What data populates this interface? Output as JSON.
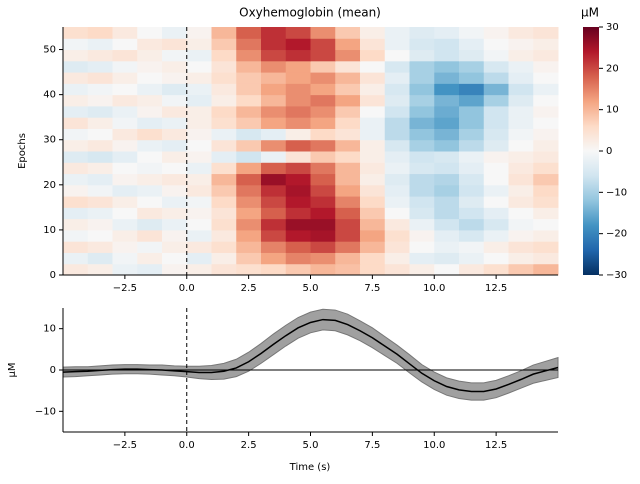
{
  "chart_data": [
    {
      "type": "heatmap",
      "title": "Oxyhemoglobin (mean)",
      "ylabel": "Epochs",
      "x": [
        -5,
        -4,
        -3,
        -2,
        -1,
        0,
        1,
        2,
        3,
        4,
        5,
        6,
        7,
        8,
        9,
        10,
        11,
        12,
        13,
        14,
        15
      ],
      "y": [
        0,
        2.5,
        5,
        7.5,
        10,
        12.5,
        15,
        17.5,
        20,
        22.5,
        25,
        27.5,
        30,
        32.5,
        35,
        37.5,
        40,
        42.5,
        45,
        47.5,
        50,
        52.5,
        55
      ],
      "z": [
        [
          3,
          2,
          -2,
          -3,
          1,
          2,
          4,
          5,
          6,
          8,
          10,
          9,
          6,
          4,
          2,
          0,
          3,
          5,
          8,
          10
        ],
        [
          -2,
          -4,
          -1,
          2,
          0,
          -3,
          2,
          8,
          12,
          15,
          14,
          10,
          6,
          2,
          -3,
          -4,
          -2,
          0,
          2,
          3
        ],
        [
          4,
          3,
          1,
          -1,
          2,
          3,
          5,
          10,
          15,
          18,
          20,
          16,
          10,
          4,
          0,
          -2,
          -1,
          2,
          4,
          5
        ],
        [
          -1,
          0,
          2,
          4,
          1,
          -2,
          3,
          12,
          20,
          24,
          25,
          20,
          12,
          5,
          1,
          -3,
          -5,
          -2,
          1,
          2
        ],
        [
          2,
          1,
          -2,
          -4,
          -2,
          0,
          5,
          14,
          22,
          26,
          26,
          20,
          10,
          3,
          -2,
          -6,
          -8,
          -5,
          -1,
          0
        ],
        [
          -3,
          -2,
          0,
          3,
          2,
          1,
          4,
          12,
          18,
          22,
          24,
          18,
          8,
          0,
          -5,
          -8,
          -6,
          -3,
          0,
          2
        ],
        [
          5,
          4,
          2,
          0,
          -2,
          -1,
          6,
          14,
          20,
          24,
          22,
          15,
          6,
          -2,
          -6,
          -8,
          -4,
          0,
          3,
          5
        ],
        [
          1,
          -1,
          -3,
          -2,
          1,
          3,
          8,
          16,
          22,
          25,
          20,
          12,
          4,
          -3,
          -8,
          -10,
          -6,
          -2,
          2,
          6
        ],
        [
          -2,
          -3,
          1,
          2,
          3,
          2,
          10,
          18,
          26,
          24,
          18,
          10,
          2,
          -4,
          -8,
          -9,
          -5,
          0,
          4,
          8
        ],
        [
          3,
          2,
          0,
          -1,
          0,
          -2,
          5,
          12,
          18,
          20,
          16,
          10,
          3,
          -2,
          -5,
          -6,
          -3,
          0,
          3,
          5
        ],
        [
          -4,
          -5,
          -3,
          0,
          2,
          1,
          -3,
          -6,
          -2,
          4,
          8,
          6,
          2,
          -3,
          -6,
          -5,
          -2,
          1,
          2,
          3
        ],
        [
          2,
          3,
          1,
          -2,
          -3,
          0,
          4,
          8,
          14,
          18,
          16,
          10,
          2,
          -5,
          -10,
          -12,
          -8,
          -4,
          0,
          2
        ],
        [
          -1,
          0,
          3,
          5,
          3,
          1,
          -2,
          -5,
          -3,
          2,
          6,
          4,
          -2,
          -8,
          -12,
          -14,
          -10,
          -5,
          -1,
          1
        ],
        [
          4,
          2,
          -1,
          -3,
          -2,
          2,
          5,
          8,
          12,
          14,
          12,
          6,
          -2,
          -8,
          -14,
          -16,
          -12,
          -6,
          -2,
          0
        ],
        [
          -3,
          -4,
          -2,
          1,
          3,
          2,
          6,
          10,
          14,
          16,
          14,
          8,
          0,
          -6,
          -12,
          -15,
          -12,
          -6,
          -2,
          1
        ],
        [
          2,
          1,
          3,
          2,
          -1,
          -3,
          2,
          6,
          10,
          14,
          16,
          12,
          4,
          -4,
          -10,
          -14,
          -16,
          -10,
          -4,
          0
        ],
        [
          -2,
          -1,
          0,
          -2,
          -4,
          -2,
          3,
          8,
          12,
          14,
          12,
          8,
          2,
          -5,
          -12,
          -18,
          -20,
          -14,
          -6,
          -2
        ],
        [
          3,
          4,
          2,
          0,
          1,
          2,
          5,
          8,
          10,
          12,
          14,
          10,
          4,
          -3,
          -10,
          -14,
          -12,
          -8,
          -3,
          0
        ],
        [
          -4,
          -3,
          -1,
          1,
          2,
          0,
          4,
          10,
          14,
          12,
          8,
          4,
          0,
          -5,
          -10,
          -12,
          -10,
          -5,
          -2,
          1
        ],
        [
          2,
          3,
          4,
          2,
          -1,
          -2,
          6,
          14,
          20,
          22,
          20,
          14,
          6,
          0,
          -4,
          -6,
          -4,
          -1,
          2,
          3
        ],
        [
          -1,
          -2,
          0,
          3,
          4,
          2,
          8,
          16,
          22,
          24,
          20,
          12,
          4,
          -2,
          -5,
          -6,
          -3,
          0,
          1,
          2
        ],
        [
          5,
          6,
          3,
          0,
          -2,
          1,
          10,
          18,
          22,
          20,
          14,
          8,
          2,
          -2,
          -4,
          -3,
          -1,
          1,
          3,
          4
        ]
      ],
      "xlim": [
        -5,
        15
      ],
      "ylim": [
        0,
        55
      ],
      "xticks": [
        {
          "value": -2.5,
          "label": "−2.5"
        },
        {
          "value": 0,
          "label": "0.0"
        },
        2.5,
        {
          "value": 5,
          "label": "5.0"
        },
        7.5,
        {
          "value": 10,
          "label": "10.0"
        },
        12.5
      ],
      "yticks": [
        0,
        10,
        20,
        30,
        40,
        50
      ],
      "vline": 0,
      "colorbar": {
        "label": "µM",
        "lim": [
          -30,
          30
        ],
        "ticks": [
          {
            "value": -30,
            "label": "−30"
          },
          {
            "value": -20,
            "label": "−20"
          },
          {
            "value": -10,
            "label": "−10"
          },
          0,
          10,
          20,
          30
        ],
        "colors": [
          "#053061",
          "#2166ac",
          "#4393c3",
          "#92c5de",
          "#d1e5f0",
          "#f7f7f7",
          "#fddbc7",
          "#f4a582",
          "#d6604d",
          "#b2182b",
          "#67001f"
        ]
      }
    },
    {
      "type": "line",
      "xlabel": "Time (s)",
      "ylabel": "µM",
      "color": "#000000",
      "band_color": "#a0a0a0",
      "x": [
        -5,
        -4.5,
        -4,
        -3.5,
        -3,
        -2.5,
        -2,
        -1.5,
        -1,
        -0.5,
        0,
        0.5,
        1,
        1.5,
        2,
        2.5,
        3,
        3.5,
        4,
        4.5,
        5,
        5.5,
        6,
        6.5,
        7,
        7.5,
        8,
        8.5,
        9,
        9.5,
        10,
        10.5,
        11,
        11.5,
        12,
        12.5,
        13,
        13.5,
        14,
        14.5,
        15
      ],
      "values": [
        -0.5,
        -0.4,
        -0.3,
        -0.1,
        0.1,
        0.2,
        0.2,
        0.1,
        0,
        -0.2,
        -0.4,
        -0.6,
        -0.6,
        -0.3,
        0.5,
        2,
        4,
        6.2,
        8.3,
        10.2,
        11.5,
        12.2,
        12,
        11,
        9.5,
        7.8,
        5.8,
        3.8,
        1.5,
        -0.8,
        -2.6,
        -4,
        -4.8,
        -5.2,
        -5.2,
        -4.6,
        -3.5,
        -2.3,
        -1,
        -0.2,
        0.6
      ],
      "errors": [
        1.2,
        1.2,
        1.1,
        1.1,
        1.1,
        1.1,
        1.1,
        1.1,
        1.2,
        1.2,
        1.3,
        1.5,
        1.7,
        1.9,
        2.1,
        2.3,
        2.4,
        2.5,
        2.5,
        2.5,
        2.5,
        2.5,
        2.5,
        2.5,
        2.4,
        2.4,
        2.3,
        2.2,
        2.2,
        2.1,
        2.1,
        2.1,
        2.1,
        2.1,
        2.1,
        2.1,
        2.1,
        2.1,
        2.2,
        2.3,
        2.4
      ],
      "xlim": [
        -5,
        15
      ],
      "ylim": [
        -15,
        15
      ],
      "xticks": [
        {
          "value": -2.5,
          "label": "−2.5"
        },
        {
          "value": 0,
          "label": "0.0"
        },
        2.5,
        {
          "value": 5,
          "label": "5.0"
        },
        7.5,
        {
          "value": 10,
          "label": "10.0"
        },
        12.5
      ],
      "yticks": [
        {
          "value": -10,
          "label": "−10"
        },
        0,
        10
      ],
      "vline": 0,
      "hline": 0
    }
  ]
}
